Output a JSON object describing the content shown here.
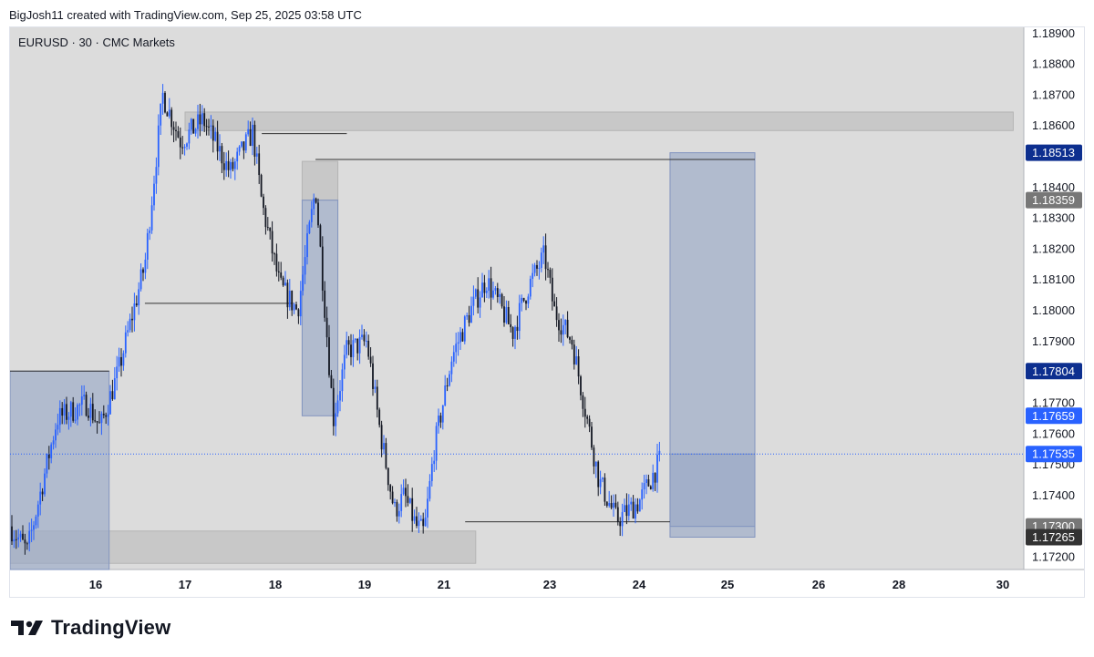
{
  "header": {
    "text": "BigJosh11 created with TradingView.com, Sep 25, 2025 03:58 UTC"
  },
  "symbol": {
    "text": "EURUSD · 30 · CMC Markets"
  },
  "brand": {
    "name": "TradingView",
    "logo_icon": "tradingview-logo-icon"
  },
  "colors": {
    "plot_bg": "#dcdcdc",
    "bull": "#2962ff",
    "bear": "#131722",
    "zone_gray": "#c4c4c4",
    "zone_blue": "#9aa9c6",
    "tag_blue": "#2962ff",
    "tag_navy": "#0d2f8f",
    "tag_gray": "#777777",
    "tag_dark": "#333333",
    "tag_black": "#111111"
  },
  "chart_data": {
    "type": "candlestick",
    "x_tick_labels": [
      "16",
      "17",
      "18",
      "19",
      "21",
      "23",
      "24",
      "25",
      "26",
      "28",
      "30"
    ],
    "y_tick_labels": [
      "1.18900",
      "1.18800",
      "1.18700",
      "1.18600",
      "1.18500",
      "1.18400",
      "1.18300",
      "1.18200",
      "1.18100",
      "1.18000",
      "1.17900",
      "1.17800",
      "1.17700",
      "1.17600",
      "1.17500",
      "1.17400",
      "1.17300",
      "1.17200"
    ],
    "ylim": [
      1.1716,
      1.1892
    ],
    "price_tags": [
      {
        "label": "1.18513",
        "value": 1.18513,
        "color_key": "tag_navy"
      },
      {
        "label": "1.18359",
        "value": 1.18359,
        "color_key": "tag_gray"
      },
      {
        "label": "1.17804",
        "value": 1.17804,
        "color_key": "tag_navy"
      },
      {
        "label": "1.17659",
        "value": 1.17659,
        "color_key": "tag_blue"
      },
      {
        "label": "1.17535",
        "value": 1.17535,
        "color_key": "tag_blue"
      },
      {
        "label": "1.17300",
        "value": 1.173,
        "color_key": "tag_gray"
      },
      {
        "label": "1.17265",
        "value": 1.17265,
        "color_key": "tag_dark"
      }
    ],
    "last_price": 1.17535,
    "waypoints": [
      [
        "15",
        1.173
      ],
      [
        "15.2",
        1.1722
      ],
      [
        "15.55",
        1.1765
      ],
      [
        "15.9",
        1.177
      ],
      [
        "16.05",
        1.1762
      ],
      [
        "16.25",
        1.178
      ],
      [
        "16.55",
        1.1815
      ],
      [
        "16.75",
        1.187
      ],
      [
        "16.95",
        1.1855
      ],
      [
        "17.2",
        1.1862
      ],
      [
        "17.5",
        1.1845
      ],
      [
        "17.75",
        1.1858
      ],
      [
        "17.85",
        1.1835
      ],
      [
        "18.05",
        1.1808
      ],
      [
        "18.25",
        1.18
      ],
      [
        "18.45",
        1.184
      ],
      [
        "18.65",
        1.1765
      ],
      [
        "18.8",
        1.1787
      ],
      [
        "19.05",
        1.179
      ],
      [
        "19.4",
        1.176
      ],
      [
        "19.75",
        1.1735
      ],
      [
        "20",
        1.174
      ],
      [
        "20.3",
        1.173
      ],
      [
        "20.5",
        1.1728
      ],
      [
        "20.75",
        1.1755
      ],
      [
        "21.15",
        1.1785
      ],
      [
        "21.5",
        1.18
      ],
      [
        "21.8",
        1.181
      ],
      [
        "22.1",
        1.18
      ],
      [
        "22.3",
        1.1793
      ],
      [
        "22.6",
        1.1808
      ],
      [
        "22.9",
        1.1818
      ],
      [
        "23.05",
        1.18
      ],
      [
        "23.25",
        1.179
      ],
      [
        "23.55",
        1.1745
      ],
      [
        "23.75",
        1.1732
      ],
      [
        "24",
        1.1738
      ],
      [
        "24.25",
        1.1752
      ]
    ],
    "zones": [
      {
        "type": "gray-zone",
        "from": "15",
        "to": "21.6",
        "y_top": 1.17285,
        "y_bottom": 1.1718
      },
      {
        "type": "gray-zone",
        "from": "17",
        "to": "30.2",
        "y_top": 1.18645,
        "y_bottom": 1.18585
      },
      {
        "type": "gray-zone",
        "from": "18.3",
        "to": "18.7",
        "y_top": 1.18485,
        "y_bottom": 1.18359
      },
      {
        "type": "blue-zone",
        "from": "15",
        "to": "16.15",
        "y_top": 1.17804,
        "y_bottom": 1.1716
      },
      {
        "type": "blue-zone",
        "from": "18.3",
        "to": "18.7",
        "y_top": 1.18359,
        "y_bottom": 1.17659
      },
      {
        "type": "blue-zone",
        "from": "24.35",
        "to": "25.3",
        "y_top": 1.18513,
        "y_bottom": 1.17265
      },
      {
        "type": "blue-zone",
        "from": "24.35",
        "to": "25.3",
        "y_top": 1.17535,
        "y_bottom": 1.173
      }
    ],
    "levels": [
      {
        "from": "15",
        "to": "16.15",
        "y": 1.17804
      },
      {
        "from": "16.55",
        "to": "18.2",
        "y": 1.18024
      },
      {
        "from": "17.85",
        "to": "18.8",
        "y": 1.18575
      },
      {
        "from": "18.45",
        "to": "25.3",
        "y": 1.18491
      },
      {
        "from": "21.4",
        "to": "24.35",
        "y": 1.17315
      }
    ]
  }
}
